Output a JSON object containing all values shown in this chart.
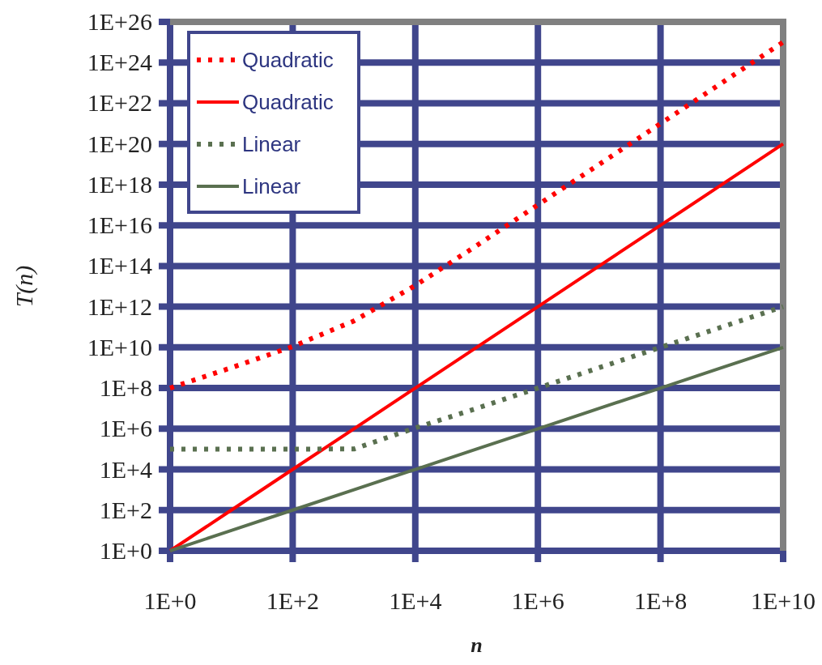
{
  "chart_data": {
    "type": "line",
    "xlabel": "n",
    "ylabel": "T(n)",
    "log": "xy",
    "grid": true,
    "legend": "top left",
    "marker": "none",
    "x": [
      1,
      10,
      100,
      1000,
      10000,
      100000,
      1000000,
      10000000,
      100000000,
      1000000000,
      10000000000
    ],
    "xlim": [
      1,
      10000000000
    ],
    "xticks": [
      {
        "value": 1,
        "label": "1E+0"
      },
      {
        "value": 100,
        "label": "1E+2"
      },
      {
        "value": 10000,
        "label": "1E+4"
      },
      {
        "value": 1000000,
        "label": "1E+6"
      },
      {
        "value": 100000000,
        "label": "1E+8"
      },
      {
        "value": 10000000000,
        "label": "1E+10"
      }
    ],
    "ylim": [
      1,
      1e+26
    ],
    "yticks": [
      {
        "value": 1,
        "label": "1E+0"
      },
      {
        "value": 100.0,
        "label": "1E+2"
      },
      {
        "value": 10000.0,
        "label": "1E+4"
      },
      {
        "value": 1000000.0,
        "label": "1E+6"
      },
      {
        "value": 100000000.0,
        "label": "1E+8"
      },
      {
        "value": 10000000000.0,
        "label": "1E+10"
      },
      {
        "value": 1000000000000.0,
        "label": "1E+12"
      },
      {
        "value": 100000000000000.0,
        "label": "1E+14"
      },
      {
        "value": 1e+16,
        "label": "1E+16"
      },
      {
        "value": 1e+18,
        "label": "1E+18"
      },
      {
        "value": 1e+20,
        "label": "1E+20"
      },
      {
        "value": 1e+22,
        "label": "1E+22"
      },
      {
        "value": 1e+24,
        "label": "1E+24"
      },
      {
        "value": 1e+26,
        "label": "1E+26"
      }
    ],
    "series": [
      {
        "name": "Quadratic",
        "color": "#ff0000",
        "line_style": "dotted",
        "values": [
          100000000.0,
          1000000000.0,
          11000000000.0,
          200000000000.0,
          11000000000000.0,
          1000000000000000.0,
          1e+17,
          1e+19,
          1e+21,
          1e+23,
          1e+25
        ]
      },
      {
        "name": "Quadratic",
        "color": "#ff0000",
        "line_style": "solid",
        "values": [
          1,
          100,
          10000.0,
          1000000.0,
          100000000.0,
          10000000000.0,
          1000000000000.0,
          100000000000000.0,
          1e+16,
          1e+18,
          1e+20
        ]
      },
      {
        "name": "Linear",
        "color": "#5a7050",
        "line_style": "dotted",
        "values": [
          100000.0,
          100000.0,
          100000.0,
          101000.0,
          1100000.0,
          10000000.0,
          100000000.0,
          1000000000.0,
          10000000000.0,
          100000000000.0,
          1000000000000.0
        ]
      },
      {
        "name": "Linear",
        "color": "#5a7050",
        "line_style": "solid",
        "values": [
          1,
          10,
          100,
          1000,
          10000,
          100000,
          1000000,
          10000000,
          100000000,
          1000000000,
          10000000000
        ]
      }
    ]
  }
}
